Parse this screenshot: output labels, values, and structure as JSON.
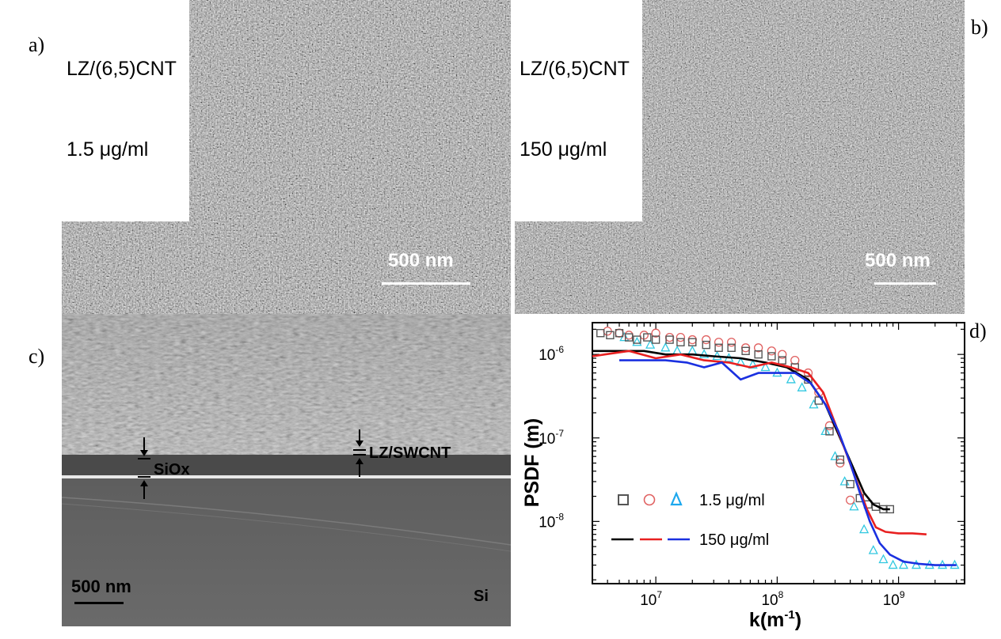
{
  "panels": {
    "a": {
      "letter": "a)",
      "label_line1": "LZ/(6,5)CNT",
      "label_line2": "1.5 μg/ml",
      "scale": "500 nm"
    },
    "b": {
      "letter": "b)",
      "label_line1": "LZ/(6,5)CNT",
      "label_line2": "150 μg/ml",
      "scale": "500 nm"
    },
    "c": {
      "letter": "c)",
      "sio_label": "SiOx",
      "film_label": "LZ/SWCNT",
      "substrate_label": "Si",
      "scale": "500 nm"
    },
    "d": {
      "letter": "d)"
    }
  },
  "chart_data": {
    "type": "scatter",
    "xlabel": "k(m",
    "xlabel_sup": "-1",
    "xlabel_close": ")",
    "ylabel": "PSDF (m)",
    "xscale": "log",
    "yscale": "log",
    "xlim": [
      3000000,
      3500000000
    ],
    "ylim": [
      1.8e-09,
      2.4e-06
    ],
    "x_ticks": [
      {
        "value": 10000000,
        "base": "10",
        "exp": "7"
      },
      {
        "value": 100000000,
        "base": "10",
        "exp": "8"
      },
      {
        "value": 1000000000,
        "base": "10",
        "exp": "9"
      }
    ],
    "y_ticks": [
      {
        "value": 1e-06,
        "base": "10",
        "exp": "-6"
      },
      {
        "value": 1e-07,
        "base": "10",
        "exp": "-7"
      },
      {
        "value": 1e-08,
        "base": "10",
        "exp": "-8"
      }
    ],
    "legend": [
      {
        "text": "1.5 μg/ml",
        "markers": [
          "square",
          "circle",
          "triangle"
        ]
      },
      {
        "text": "150 μg/ml",
        "markers": [
          "line-black",
          "line-red",
          "line-blue"
        ]
      }
    ],
    "series": [
      {
        "marker": "square",
        "color": "#555555",
        "x": [
          3500000,
          4200000,
          5000000,
          6000000,
          7000000,
          8500000,
          10000000,
          13000000,
          16000000,
          20000000,
          26000000,
          33000000,
          42000000,
          55000000,
          70000000,
          90000000,
          110000000,
          140000000,
          180000000,
          220000000,
          270000000,
          330000000,
          400000000,
          480000000,
          560000000,
          650000000,
          750000000,
          850000000
        ],
        "y": [
          1.8e-06,
          1.7e-06,
          1.8e-06,
          1.6e-06,
          1.5e-06,
          1.6e-06,
          1.5e-06,
          1.5e-06,
          1.4e-06,
          1.4e-06,
          1.3e-06,
          1.2e-06,
          1.2e-06,
          1.1e-06,
          1e-06,
          9.5e-07,
          8.5e-07,
          7e-07,
          5e-07,
          2.8e-07,
          1.2e-07,
          5.5e-08,
          2.8e-08,
          1.9e-08,
          1.6e-08,
          1.5e-08,
          1.4e-08,
          1.4e-08
        ]
      },
      {
        "marker": "circle",
        "color": "#e06060",
        "x": [
          4000000,
          5000000,
          6000000,
          8000000,
          10000000,
          13000000,
          16000000,
          20000000,
          26000000,
          33000000,
          42000000,
          55000000,
          70000000,
          90000000,
          110000000,
          140000000,
          180000000,
          220000000,
          270000000,
          330000000,
          400000000
        ],
        "y": [
          1.9e-06,
          1.8e-06,
          1.7e-06,
          1.7e-06,
          1.8e-06,
          1.6e-06,
          1.6e-06,
          1.5e-06,
          1.5e-06,
          1.4e-06,
          1.4e-06,
          1.2e-06,
          1.2e-06,
          1.1e-06,
          1e-06,
          8.5e-07,
          6e-07,
          3.5e-07,
          1.4e-07,
          5e-08,
          1.8e-08
        ]
      },
      {
        "marker": "triangle",
        "color": "#30c8e0",
        "x": [
          5500000,
          7000000,
          9000000,
          12000000,
          15000000,
          20000000,
          25000000,
          32000000,
          40000000,
          50000000,
          63000000,
          80000000,
          100000000,
          130000000,
          160000000,
          200000000,
          250000000,
          300000000,
          360000000,
          430000000,
          520000000,
          620000000,
          750000000,
          900000000,
          1100000000,
          1400000000,
          1800000000,
          2300000000,
          2900000000
        ],
        "y": [
          1.6e-06,
          1.4e-06,
          1.3e-06,
          1.2e-06,
          1.1e-06,
          1.1e-06,
          1e-06,
          9.5e-07,
          9e-07,
          8e-07,
          7.5e-07,
          7e-07,
          6e-07,
          5e-07,
          4e-07,
          2.5e-07,
          1.2e-07,
          6e-08,
          3e-08,
          1.5e-08,
          8e-09,
          4.5e-09,
          3.5e-09,
          3e-09,
          3e-09,
          3e-09,
          3e-09,
          3e-09,
          3e-09
        ]
      },
      {
        "marker": "line",
        "color": "#000000",
        "x": [
          3000000,
          5000000,
          8000000,
          12000000,
          20000000,
          30000000,
          50000000,
          80000000,
          120000000,
          180000000,
          250000000,
          330000000,
          420000000,
          520000000,
          620000000,
          750000000,
          850000000
        ],
        "y": [
          1.1e-06,
          1.1e-06,
          1.1e-06,
          1e-06,
          1e-06,
          9.5e-07,
          9e-07,
          8e-07,
          7e-07,
          5e-07,
          2.5e-07,
          1e-07,
          4.5e-08,
          2.2e-08,
          1.6e-08,
          1.4e-08,
          1.4e-08
        ]
      },
      {
        "marker": "line",
        "color": "#e82020",
        "x": [
          3000000,
          6000000,
          10000000,
          16000000,
          25000000,
          40000000,
          60000000,
          90000000,
          130000000,
          180000000,
          240000000,
          300000000,
          380000000,
          460000000,
          550000000,
          650000000,
          780000000,
          1000000000,
          1300000000,
          1700000000
        ],
        "y": [
          9.5e-07,
          1.1e-06,
          9e-07,
          1e-06,
          8.5e-07,
          8e-07,
          7e-07,
          8e-07,
          7e-07,
          6e-07,
          3.5e-07,
          1.5e-07,
          6e-08,
          2.8e-08,
          1.4e-08,
          8.5e-09,
          7.5e-09,
          7.2e-09,
          7.2e-09,
          7e-09
        ]
      },
      {
        "marker": "line",
        "color": "#1a30e0",
        "x": [
          5000000,
          8000000,
          12000000,
          18000000,
          25000000,
          35000000,
          50000000,
          70000000,
          100000000,
          140000000,
          190000000,
          250000000,
          320000000,
          400000000,
          480000000,
          580000000,
          700000000,
          850000000,
          1100000000,
          1500000000,
          2000000000,
          2500000000,
          3000000000
        ],
        "y": [
          8.5e-07,
          8.5e-07,
          8.5e-07,
          8e-07,
          7e-07,
          8e-07,
          5e-07,
          6e-07,
          6e-07,
          6e-07,
          4.5e-07,
          2.5e-07,
          1.2e-07,
          5e-08,
          2.2e-08,
          1e-08,
          5.5e-09,
          4e-09,
          3.3e-09,
          3.1e-09,
          3e-09,
          3e-09,
          3e-09
        ]
      }
    ]
  }
}
